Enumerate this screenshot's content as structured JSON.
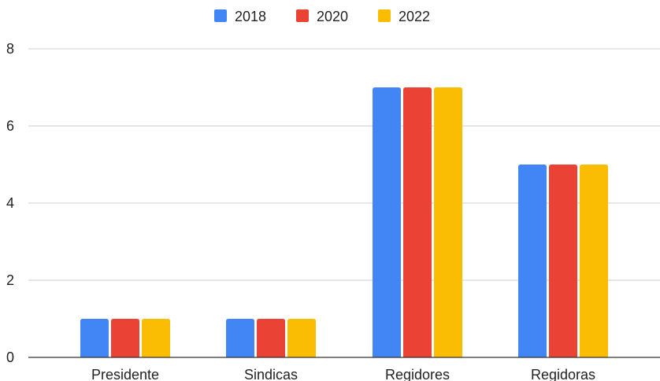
{
  "chart_data": {
    "type": "bar",
    "title": "",
    "xlabel": "",
    "ylabel": "",
    "categories": [
      "Presidente",
      "Sindicas",
      "Regidores",
      "Regidoras"
    ],
    "series": [
      {
        "name": "2018",
        "color": "#4285F4",
        "values": [
          1,
          1,
          7,
          5
        ]
      },
      {
        "name": "2020",
        "color": "#EA4335",
        "values": [
          1,
          1,
          7,
          5
        ]
      },
      {
        "name": "2022",
        "color": "#FBBC04",
        "values": [
          1,
          1,
          7,
          5
        ]
      }
    ],
    "ylim": [
      0,
      8
    ],
    "yticks": [
      0,
      2,
      4,
      6,
      8
    ],
    "grid": true,
    "legend_position": "top-center"
  }
}
